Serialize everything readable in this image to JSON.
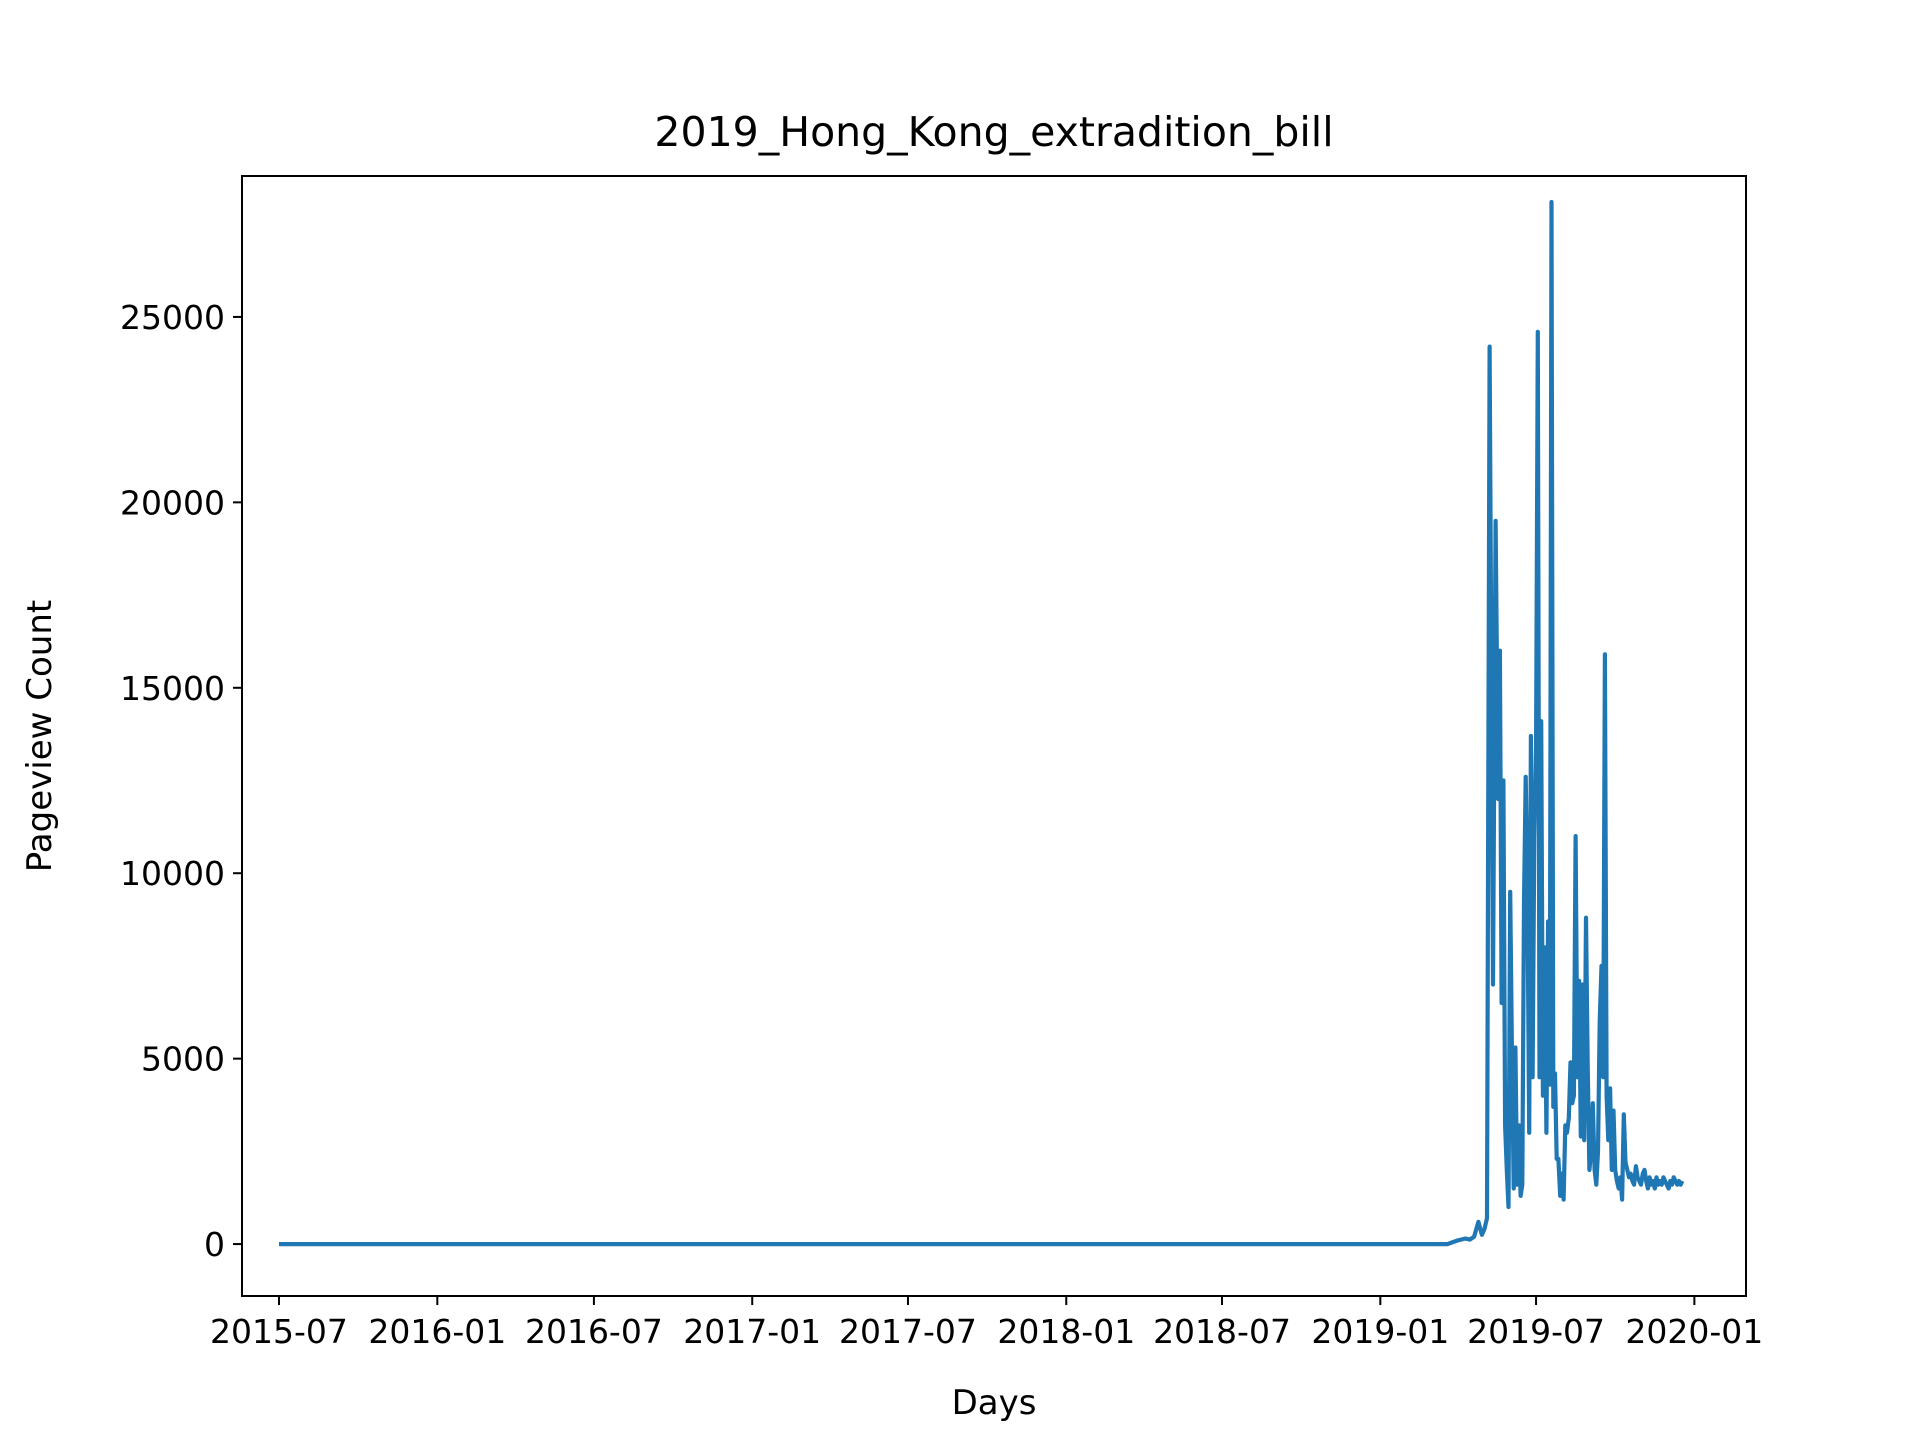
{
  "chart_data": {
    "type": "line",
    "title": "2019_Hong_Kong_extradition_bill",
    "xlabel": "Days",
    "ylabel": "Pageview Count",
    "xlim": [
      "2015-05-19",
      "2020-03-01"
    ],
    "ylim": [
      -1400,
      28800
    ],
    "x_ticks": [
      "2015-07",
      "2016-01",
      "2016-07",
      "2017-01",
      "2017-07",
      "2018-01",
      "2018-07",
      "2019-01",
      "2019-07",
      "2020-01"
    ],
    "x_tick_dates": [
      "2015-07-01",
      "2016-01-01",
      "2016-07-01",
      "2017-01-01",
      "2017-07-01",
      "2018-01-01",
      "2018-07-01",
      "2019-01-01",
      "2019-07-01",
      "2020-01-01"
    ],
    "y_ticks": [
      0,
      5000,
      10000,
      15000,
      20000,
      25000
    ],
    "grid": false,
    "line_color": "#1f77b4",
    "series": [
      {
        "dates": [
          "2015-07-01",
          "2019-03-20",
          "2019-04-01",
          "2019-04-10",
          "2019-04-15",
          "2019-04-20",
          "2019-04-25",
          "2019-04-29",
          "2019-05-02",
          "2019-05-05",
          "2019-05-08",
          "2019-05-12",
          "2019-05-15",
          "2019-05-18",
          "2019-05-20",
          "2019-05-22",
          "2019-05-24",
          "2019-05-26",
          "2019-05-28",
          "2019-05-30",
          "2019-06-01",
          "2019-06-03",
          "2019-06-05",
          "2019-06-07",
          "2019-06-09",
          "2019-06-11",
          "2019-06-13",
          "2019-06-15",
          "2019-06-17",
          "2019-06-19",
          "2019-06-21",
          "2019-06-23",
          "2019-06-25",
          "2019-06-27",
          "2019-06-29",
          "2019-07-01",
          "2019-07-03",
          "2019-07-05",
          "2019-07-07",
          "2019-07-09",
          "2019-07-11",
          "2019-07-13",
          "2019-07-15",
          "2019-07-17",
          "2019-07-19",
          "2019-07-21",
          "2019-07-23",
          "2019-07-25",
          "2019-07-27",
          "2019-07-29",
          "2019-07-31",
          "2019-08-02",
          "2019-08-04",
          "2019-08-06",
          "2019-08-08",
          "2019-08-10",
          "2019-08-12",
          "2019-08-14",
          "2019-08-16",
          "2019-08-18",
          "2019-08-20",
          "2019-08-22",
          "2019-08-24",
          "2019-08-26",
          "2019-08-28",
          "2019-08-30",
          "2019-09-01",
          "2019-09-03",
          "2019-09-05",
          "2019-09-07",
          "2019-09-09",
          "2019-09-11",
          "2019-09-13",
          "2019-09-15",
          "2019-09-17",
          "2019-09-19",
          "2019-09-21",
          "2019-09-23",
          "2019-09-25",
          "2019-09-27",
          "2019-09-29",
          "2019-10-01",
          "2019-10-03",
          "2019-10-05",
          "2019-10-07",
          "2019-10-09",
          "2019-10-11",
          "2019-10-13",
          "2019-10-15",
          "2019-10-17",
          "2019-10-19",
          "2019-10-21",
          "2019-10-23",
          "2019-10-25",
          "2019-10-27",
          "2019-10-29",
          "2019-10-31",
          "2019-11-02",
          "2019-11-04",
          "2019-11-06",
          "2019-11-08",
          "2019-11-10",
          "2019-11-12",
          "2019-11-14",
          "2019-11-16",
          "2019-11-18",
          "2019-11-20",
          "2019-11-22",
          "2019-11-24",
          "2019-11-26",
          "2019-11-28",
          "2019-11-30",
          "2019-12-02",
          "2019-12-04",
          "2019-12-06",
          "2019-12-08",
          "2019-12-10",
          "2019-12-12",
          "2019-12-14",
          "2019-12-16",
          "2019-12-18"
        ],
        "values": [
          0,
          0,
          100,
          150,
          120,
          200,
          600,
          250,
          400,
          700,
          24200,
          7000,
          19500,
          12000,
          16000,
          6500,
          12500,
          3200,
          2000,
          1000,
          9500,
          5000,
          1500,
          5300,
          1600,
          3200,
          1300,
          1600,
          9200,
          12600,
          9300,
          3000,
          13700,
          4500,
          11000,
          13500,
          24600,
          4500,
          14100,
          4000,
          8000,
          3000,
          8700,
          4300,
          28100,
          3700,
          4600,
          2300,
          2300,
          1300,
          1900,
          1200,
          3200,
          3000,
          3400,
          4900,
          3800,
          4000,
          11000,
          4500,
          7100,
          2900,
          7000,
          2800,
          8800,
          4800,
          2000,
          2500,
          3800,
          2000,
          1600,
          2500,
          6000,
          7500,
          4500,
          15900,
          4000,
          2800,
          4200,
          2000,
          3600,
          2000,
          1700,
          1500,
          1800,
          1200,
          3500,
          2200,
          2000,
          1800,
          1900,
          1700,
          1600,
          2100,
          1800,
          1700,
          1600,
          1900,
          2000,
          1700,
          1500,
          1800,
          1600,
          1700,
          1500,
          1800,
          1600,
          1700,
          1600,
          1800,
          1700,
          1600,
          1500,
          1700,
          1600,
          1800,
          1700,
          1600,
          1700,
          1600,
          1700
        ]
      }
    ]
  }
}
